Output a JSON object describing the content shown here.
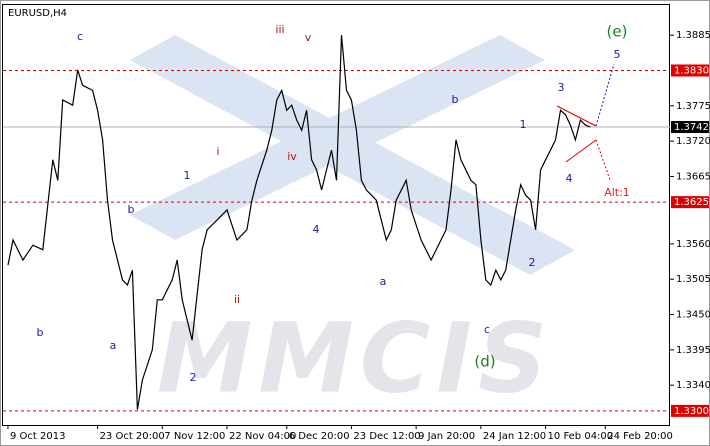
{
  "chart_data": {
    "type": "line",
    "title": "EURUSD,H4",
    "watermark": "MMCIS",
    "color": "#000000",
    "x": [
      1,
      2,
      4,
      6,
      8,
      10,
      11,
      12,
      14,
      15,
      16,
      18,
      19,
      20,
      21,
      22,
      23,
      24,
      25,
      26,
      27,
      28,
      30,
      31,
      32,
      34,
      35,
      36,
      38,
      40,
      41,
      43,
      45,
      47,
      49,
      50,
      51,
      53,
      54,
      55,
      56,
      57,
      58,
      59,
      60,
      61,
      62,
      63,
      64,
      65,
      66,
      67,
      68,
      69,
      70,
      71,
      72,
      73,
      75,
      76,
      77,
      78,
      79,
      81,
      82,
      84,
      86,
      88,
      89,
      90,
      91,
      92,
      94,
      95,
      96,
      97,
      98,
      99,
      100,
      101,
      102,
      103,
      104,
      105,
      106,
      107,
      108,
      109,
      110,
      111,
      112,
      113,
      114,
      115,
      116,
      117,
      118
    ],
    "values": [
      1.3527,
      1.3566,
      1.3535,
      1.3558,
      1.3551,
      1.3691,
      1.3659,
      1.3784,
      1.3776,
      1.3831,
      1.3807,
      1.3799,
      1.3768,
      1.3722,
      1.3628,
      1.3566,
      1.3535,
      1.3504,
      1.3496,
      1.3519,
      1.3302,
      1.3348,
      1.3395,
      1.3473,
      1.3473,
      1.3504,
      1.3535,
      1.3473,
      1.341,
      1.3551,
      1.3582,
      1.3597,
      1.3613,
      1.3566,
      1.3582,
      1.3628,
      1.3659,
      1.3706,
      1.3737,
      1.3784,
      1.3799,
      1.3768,
      1.3776,
      1.3753,
      1.3737,
      1.3768,
      1.3691,
      1.3675,
      1.3644,
      1.3675,
      1.3706,
      1.3659,
      1.3885,
      1.3799,
      1.3784,
      1.3737,
      1.3659,
      1.3644,
      1.3628,
      1.3597,
      1.3566,
      1.3582,
      1.3628,
      1.3659,
      1.3613,
      1.3566,
      1.3535,
      1.3566,
      1.3582,
      1.3644,
      1.3722,
      1.3691,
      1.3659,
      1.3652,
      1.3566,
      1.3504,
      1.3496,
      1.3519,
      1.3504,
      1.3519,
      1.3566,
      1.3613,
      1.3652,
      1.3636,
      1.3628,
      1.3582,
      1.3675,
      1.3691,
      1.3706,
      1.3722,
      1.3768,
      1.3761,
      1.3745,
      1.3722,
      1.3753,
      1.3745,
      1.3742
    ],
    "xlim": [
      0,
      134
    ],
    "ylim": [
      1.3278,
      1.3932
    ],
    "xticks": [
      {
        "value": 1,
        "label": "9 Oct 2013"
      },
      {
        "value": 19,
        "label": "23 Oct 20:00"
      },
      {
        "value": 32,
        "label": "7 Nov 12:00"
      },
      {
        "value": 45,
        "label": "22 Nov 04:00"
      },
      {
        "value": 57,
        "label": "6 Dec 20:00"
      },
      {
        "value": 70,
        "label": "23 Dec 12:00"
      },
      {
        "value": 83,
        "label": "9 Jan 20:00"
      },
      {
        "value": 96,
        "label": "24 Jan 12:00"
      },
      {
        "value": 109,
        "label": "10 Feb 04:00"
      },
      {
        "value": 121,
        "label": "24 Feb 20:00"
      }
    ],
    "yticks": [
      {
        "value": 1.3885,
        "label": "1.3885"
      },
      {
        "value": 1.3775,
        "label": "1.3775"
      },
      {
        "value": 1.372,
        "label": "1.3720"
      },
      {
        "value": 1.3665,
        "label": "1.3665"
      },
      {
        "value": 1.356,
        "label": "1.3560"
      },
      {
        "value": 1.3505,
        "label": "1.3505"
      },
      {
        "value": 1.345,
        "label": "1.3450"
      },
      {
        "value": 1.3395,
        "label": "1.3395"
      },
      {
        "value": 1.334,
        "label": "1.3340"
      }
    ],
    "levels": [
      {
        "value": 1.383,
        "label": "1.3830",
        "color": "#e00000",
        "style": "dashed"
      },
      {
        "value": 1.3742,
        "label": "1.3742",
        "color": "#000000",
        "style": "solid"
      },
      {
        "value": 1.3625,
        "label": "1.3625",
        "color": "#e00000",
        "style": "dashed"
      },
      {
        "value": 1.33,
        "label": "1.3300",
        "color": "#e00000",
        "style": "dashed"
      }
    ],
    "annotations": [
      {
        "text": "c",
        "color": "#1a1aa8"
      },
      {
        "text": "b",
        "color": "#1a1aa8"
      },
      {
        "text": "a",
        "color": "#1a1aa8"
      },
      {
        "text": "b",
        "color": "#1a1aa8"
      },
      {
        "text": "1",
        "color": "#1a1aa8"
      },
      {
        "text": "2",
        "color": "#1a1aa8"
      },
      {
        "text": "i",
        "color": "#b01818"
      },
      {
        "text": "ii",
        "color": "#b01818"
      },
      {
        "text": "iii",
        "color": "#b01818"
      },
      {
        "text": "iv",
        "color": "#b01818"
      },
      {
        "text": "v",
        "color": "#b01818"
      },
      {
        "text": "4",
        "color": "#1a1aa8"
      },
      {
        "text": "a",
        "color": "#1a1aa8"
      },
      {
        "text": "b",
        "color": "#1a1aa8"
      },
      {
        "text": "c",
        "color": "#1a1aa8"
      },
      {
        "text": "(d)",
        "color": "#1e8020"
      },
      {
        "text": "1",
        "color": "#1a1aa8"
      },
      {
        "text": "2",
        "color": "#1a1aa8"
      },
      {
        "text": "3",
        "color": "#1a1aa8"
      },
      {
        "text": "4",
        "color": "#1a1aa8"
      },
      {
        "text": "5",
        "color": "#1a1aa8"
      },
      {
        "text": "(e)",
        "color": "#1e8020"
      },
      {
        "text": "Alt:1",
        "color": "#e02020"
      }
    ]
  }
}
